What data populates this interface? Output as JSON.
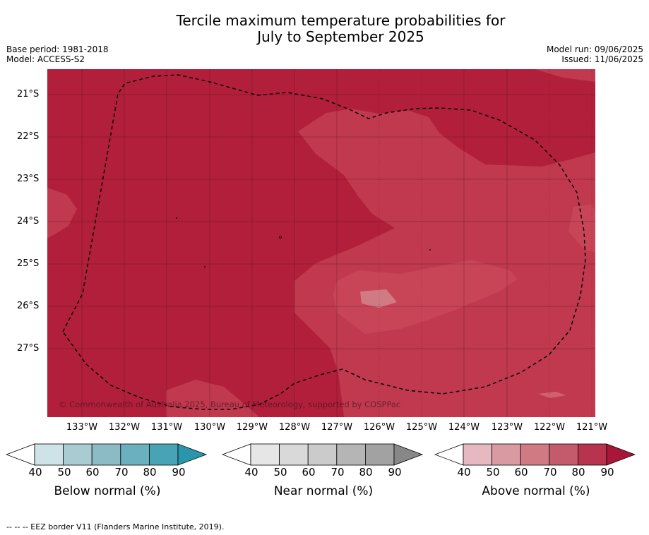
{
  "title": {
    "line1": "Tercile maximum temperature probabilities for",
    "line2": "July to September 2025"
  },
  "meta": {
    "base_period": "Base period: 1981-2018",
    "model": "Model: ACCESS-S2",
    "model_run": "Model run: 09/06/2025",
    "issued": "Issued: 11/06/2025"
  },
  "map": {
    "lat_labels": [
      "21°S",
      "22°S",
      "23°S",
      "24°S",
      "25°S",
      "26°S",
      "27°S"
    ],
    "lon_labels": [
      "133°W",
      "132°W",
      "131°W",
      "130°W",
      "129°W",
      "128°W",
      "127°W",
      "126°W",
      "125°W",
      "124°W",
      "123°W",
      "122°W",
      "121°W"
    ],
    "copyright": "© Commonwealth of Australia 2025, Bureau of Meteorology, supported by COSPPac",
    "colors": {
      "above_80_90": "#b21f3a",
      "above_70_80": "#c0394e",
      "above_60_70": "#d07b84",
      "boundary": "#000000"
    }
  },
  "colorbars": [
    {
      "label": "Below normal (%)",
      "ticks": [
        "40",
        "50",
        "60",
        "70",
        "80",
        "90"
      ],
      "colors": [
        "#ffffff",
        "#cde3e8",
        "#a9ccd3",
        "#8cbac5",
        "#6ab0bf",
        "#48a3b4",
        "#2a96ad"
      ]
    },
    {
      "label": "Near normal (%)",
      "ticks": [
        "40",
        "50",
        "60",
        "70",
        "80",
        "90"
      ],
      "colors": [
        "#ffffff",
        "#e6e6e6",
        "#d9d9d9",
        "#cbcbcb",
        "#b5b5b5",
        "#a2a2a2",
        "#878787"
      ]
    },
    {
      "label": "Above normal (%)",
      "ticks": [
        "40",
        "50",
        "60",
        "70",
        "80",
        "90"
      ],
      "colors": [
        "#ffffff",
        "#e6b9c1",
        "#d99aa2",
        "#d07b84",
        "#c45b6c",
        "#b8334d",
        "#a81737"
      ]
    }
  ],
  "footnote": "--  --  -- EEZ border V11 (Flanders Marine Institute, 2019)."
}
